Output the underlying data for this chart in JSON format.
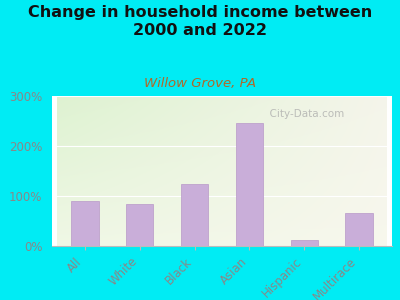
{
  "title": "Change in household income between\n2000 and 2022",
  "subtitle": "Willow Grove, PA",
  "categories": [
    "All",
    "White",
    "Black",
    "Asian",
    "Hispanic",
    "Multirace"
  ],
  "values": [
    90,
    85,
    125,
    247,
    13,
    67
  ],
  "bar_color": "#c9aed9",
  "bar_edge_color": "#b898c8",
  "ylim": [
    0,
    300
  ],
  "yticks": [
    0,
    100,
    200,
    300
  ],
  "ytick_labels": [
    "0%",
    "100%",
    "200%",
    "300%"
  ],
  "bg_outer": "#00ecf4",
  "title_fontsize": 11.5,
  "subtitle_fontsize": 9.5,
  "subtitle_color": "#b06828",
  "tick_color": "#888888",
  "watermark": "City-Data.com",
  "watermark_icon": "©"
}
